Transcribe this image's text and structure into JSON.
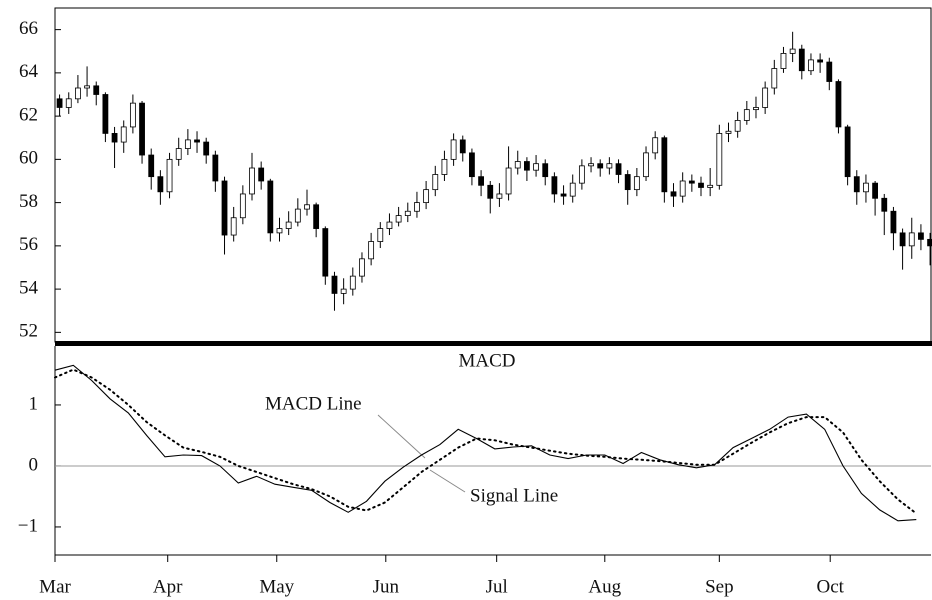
{
  "chart_data": [
    {
      "type": "candlestick",
      "open": [
        62.8,
        62.4,
        62.8,
        63.3,
        63.4,
        63.0,
        61.2,
        60.8,
        61.5,
        62.6,
        60.2,
        59.2,
        58.5,
        60.0,
        60.5,
        60.9,
        60.8,
        60.2,
        59.0,
        56.5,
        57.3,
        58.4,
        59.6,
        59.0,
        56.6,
        56.8,
        57.1,
        57.7,
        57.9,
        56.8,
        54.6,
        53.8,
        54.0,
        54.6,
        55.4,
        56.2,
        56.8,
        57.1,
        57.4,
        57.6,
        58.0,
        58.6,
        59.3,
        60.0,
        60.9,
        60.3,
        59.2,
        58.8,
        58.2,
        58.4,
        59.6,
        59.9,
        59.5,
        59.8,
        59.2,
        58.4,
        58.3,
        58.9,
        59.7,
        59.8,
        59.6,
        59.8,
        59.3,
        58.6,
        59.2,
        60.3,
        61.0,
        58.5,
        58.3,
        59.0,
        58.9,
        58.7,
        58.8,
        61.2,
        61.3,
        61.8,
        62.3,
        62.4,
        63.3,
        64.2,
        64.9,
        65.1,
        64.1,
        64.6,
        64.5,
        63.6,
        61.5,
        59.2,
        58.5,
        58.9,
        58.2,
        57.6,
        56.6,
        56.0,
        56.6,
        56.3
      ],
      "high": [
        63.0,
        63.1,
        63.9,
        64.3,
        63.6,
        63.1,
        61.5,
        61.8,
        63.0,
        62.7,
        60.5,
        59.5,
        60.3,
        61.0,
        61.4,
        61.3,
        61.0,
        60.4,
        59.2,
        57.8,
        58.8,
        60.3,
        59.9,
        59.1,
        57.3,
        57.6,
        58.2,
        58.6,
        58.0,
        56.9,
        54.8,
        54.5,
        55.0,
        55.7,
        56.6,
        57.1,
        57.5,
        57.8,
        58.0,
        58.5,
        59.0,
        59.7,
        60.4,
        61.2,
        61.1,
        60.5,
        59.5,
        59.0,
        58.9,
        60.6,
        60.4,
        60.1,
        60.2,
        60.0,
        59.4,
        58.8,
        59.3,
        60.0,
        60.1,
        60.0,
        60.1,
        60.0,
        59.5,
        59.6,
        60.6,
        61.3,
        61.1,
        58.9,
        59.4,
        59.3,
        59.2,
        59.6,
        61.6,
        61.7,
        62.2,
        62.7,
        62.9,
        63.6,
        64.6,
        65.2,
        65.9,
        65.3,
        64.9,
        64.9,
        64.7,
        63.7,
        61.6,
        59.5,
        59.3,
        59.0,
        58.4,
        57.8,
        56.8,
        57.3,
        57.0,
        56.6
      ],
      "low": [
        62.0,
        62.1,
        62.6,
        62.9,
        62.5,
        60.8,
        59.6,
        60.3,
        61.2,
        59.8,
        58.6,
        57.9,
        58.2,
        59.7,
        60.2,
        60.3,
        59.8,
        58.5,
        55.6,
        56.2,
        57.0,
        58.1,
        58.6,
        56.2,
        56.2,
        56.5,
        56.9,
        57.4,
        56.4,
        54.2,
        53.0,
        53.3,
        53.7,
        54.3,
        55.1,
        55.9,
        56.5,
        56.9,
        57.1,
        57.3,
        57.7,
        58.3,
        59.0,
        59.7,
        59.9,
        58.8,
        58.3,
        57.5,
        57.8,
        58.1,
        59.3,
        59.0,
        59.2,
        58.8,
        58.0,
        57.9,
        58.0,
        58.6,
        59.4,
        59.2,
        59.3,
        58.9,
        57.9,
        58.3,
        59.0,
        60.0,
        58.0,
        57.8,
        58.0,
        58.5,
        58.3,
        58.3,
        58.6,
        60.8,
        61.0,
        61.6,
        61.9,
        62.1,
        63.0,
        64.0,
        64.5,
        63.7,
        63.9,
        64.0,
        63.2,
        61.2,
        58.8,
        57.9,
        58.0,
        57.4,
        56.5,
        55.8,
        54.9,
        55.4,
        55.8,
        55.1
      ],
      "close": [
        62.4,
        62.8,
        63.3,
        63.4,
        63.0,
        61.2,
        60.8,
        61.5,
        62.6,
        60.2,
        59.2,
        58.5,
        60.0,
        60.5,
        60.9,
        60.8,
        60.2,
        59.0,
        56.5,
        57.3,
        58.4,
        59.6,
        59.0,
        56.6,
        56.8,
        57.1,
        57.7,
        57.9,
        56.8,
        54.6,
        53.8,
        54.0,
        54.6,
        55.4,
        56.2,
        56.8,
        57.1,
        57.4,
        57.6,
        58.0,
        58.6,
        59.3,
        60.0,
        60.9,
        60.3,
        59.2,
        58.8,
        58.2,
        58.4,
        59.6,
        59.9,
        59.5,
        59.8,
        59.2,
        58.4,
        58.3,
        58.9,
        59.7,
        59.8,
        59.6,
        59.8,
        59.3,
        58.6,
        59.2,
        60.3,
        61.0,
        58.5,
        58.3,
        59.0,
        58.9,
        58.7,
        58.8,
        61.2,
        61.3,
        61.8,
        62.3,
        62.4,
        63.3,
        64.2,
        64.9,
        65.1,
        64.1,
        64.6,
        64.5,
        63.6,
        61.5,
        59.2,
        58.5,
        58.9,
        58.2,
        57.6,
        56.6,
        56.0,
        56.6,
        56.3,
        56.0
      ],
      "up_color": "#ffffff",
      "down_color": "#000000",
      "xlim": [
        0,
        95.6
      ],
      "ylim": [
        51.6,
        67
      ],
      "yticks": [
        52,
        54,
        56,
        58,
        60,
        62,
        64,
        66
      ]
    },
    {
      "type": "line",
      "title": "MACD",
      "x": [
        0,
        2,
        4,
        6,
        8,
        10,
        12,
        14,
        16,
        18,
        20,
        22,
        24,
        26,
        28,
        30,
        32,
        34,
        36,
        38,
        40,
        42,
        44,
        46,
        48,
        50,
        52,
        54,
        56,
        58,
        60,
        62,
        64,
        66,
        68,
        70,
        72,
        74,
        76,
        78,
        80,
        82,
        84,
        86,
        88,
        90,
        92,
        94
      ],
      "series": [
        {
          "name": "MACD Line",
          "color": "#000000",
          "style": "solid",
          "values": [
            1.57,
            1.65,
            1.4,
            1.1,
            0.87,
            0.5,
            0.15,
            0.18,
            0.17,
            0.0,
            -0.28,
            -0.17,
            -0.3,
            -0.35,
            -0.4,
            -0.6,
            -0.76,
            -0.58,
            -0.25,
            -0.02,
            0.18,
            0.35,
            0.6,
            0.45,
            0.28,
            0.31,
            0.33,
            0.18,
            0.12,
            0.18,
            0.18,
            0.04,
            0.22,
            0.1,
            0.02,
            -0.03,
            0.02,
            0.3,
            0.45,
            0.6,
            0.8,
            0.85,
            0.6,
            0.0,
            -0.45,
            -0.72,
            -0.9,
            -0.88
          ]
        },
        {
          "name": "Signal Line",
          "color": "#000000",
          "style": "dotted",
          "values": [
            1.45,
            1.58,
            1.45,
            1.25,
            1.0,
            0.72,
            0.5,
            0.3,
            0.23,
            0.15,
            0.0,
            -0.1,
            -0.2,
            -0.3,
            -0.38,
            -0.5,
            -0.67,
            -0.73,
            -0.6,
            -0.35,
            -0.1,
            0.1,
            0.3,
            0.45,
            0.42,
            0.35,
            0.3,
            0.25,
            0.2,
            0.17,
            0.15,
            0.12,
            0.1,
            0.08,
            0.05,
            0.02,
            0.02,
            0.2,
            0.38,
            0.55,
            0.7,
            0.8,
            0.8,
            0.55,
            0.1,
            -0.25,
            -0.55,
            -0.78
          ]
        }
      ],
      "xlim": [
        0,
        95.6
      ],
      "xticks": [
        {
          "value": 0,
          "label": "Mar"
        },
        {
          "value": 12.3,
          "label": "Apr"
        },
        {
          "value": 24.2,
          "label": "May"
        },
        {
          "value": 36.1,
          "label": "Jun"
        },
        {
          "value": 48.2,
          "label": "Jul"
        },
        {
          "value": 60.0,
          "label": "Aug"
        },
        {
          "value": 72.5,
          "label": "Sep"
        },
        {
          "value": 84.6,
          "label": "Oct"
        }
      ],
      "ylim": [
        -1.46,
        1.95
      ],
      "yticks": [
        {
          "value": -1,
          "label": "−1"
        },
        0,
        1
      ],
      "hline": 0
    }
  ]
}
